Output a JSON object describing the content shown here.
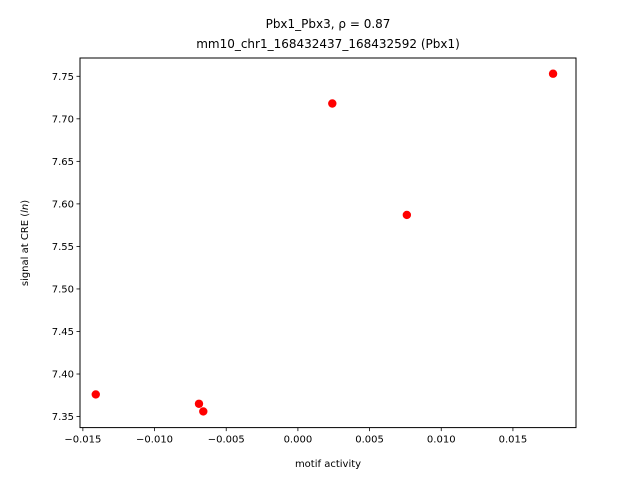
{
  "chart_data": {
    "type": "scatter",
    "title_line1": "Pbx1_Pbx3, ρ = 0.87",
    "title_line2": "mm10_chr1_168432437_168432592 (Pbx1)",
    "xlabel": "motif activity",
    "ylabel": "signal at CRE (ln)",
    "xlim": [
      -0.0152,
      0.0194
    ],
    "ylim": [
      7.337,
      7.7715
    ],
    "xticks": [
      -0.015,
      -0.01,
      -0.005,
      0.0,
      0.005,
      0.01,
      0.015
    ],
    "xtick_labels": [
      "−0.015",
      "−0.010",
      "−0.005",
      "0.000",
      "0.005",
      "0.010",
      "0.015"
    ],
    "yticks": [
      7.35,
      7.4,
      7.45,
      7.5,
      7.55,
      7.6,
      7.65,
      7.7,
      7.75
    ],
    "ytick_labels": [
      "7.35",
      "7.40",
      "7.45",
      "7.50",
      "7.55",
      "7.60",
      "7.65",
      "7.70",
      "7.75"
    ],
    "marker_color": "#ff0000",
    "grid": false,
    "x": [
      -0.0141,
      -0.0069,
      -0.0066,
      0.0024,
      0.0076,
      0.0178
    ],
    "y": [
      7.376,
      7.365,
      7.356,
      7.718,
      7.587,
      7.753
    ]
  }
}
